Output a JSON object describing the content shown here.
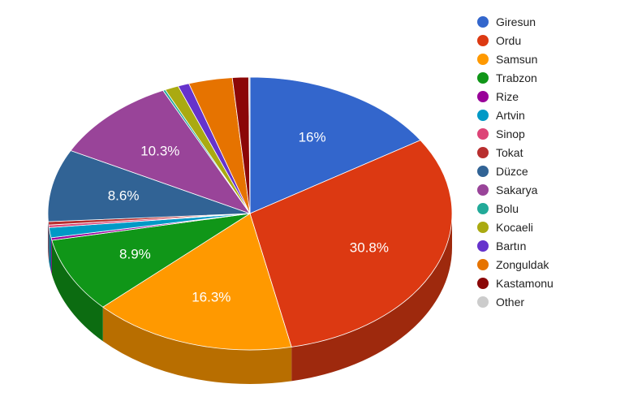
{
  "chart_data": {
    "type": "pie",
    "style": "3d",
    "legend_position": "right",
    "title": "",
    "slices": [
      {
        "name": "Giresun",
        "value": 16.0,
        "label": "16%",
        "color": "#3366cc"
      },
      {
        "name": "Ordu",
        "value": 30.8,
        "label": "30.8%",
        "color": "#dc3912"
      },
      {
        "name": "Samsun",
        "value": 16.3,
        "label": "16.3%",
        "color": "#ff9900"
      },
      {
        "name": "Trabzon",
        "value": 8.9,
        "label": "8.9%",
        "color": "#109618"
      },
      {
        "name": "Rize",
        "value": 0.3,
        "label": "",
        "color": "#990099"
      },
      {
        "name": "Artvin",
        "value": 1.2,
        "label": "",
        "color": "#0099c6"
      },
      {
        "name": "Sinop",
        "value": 0.3,
        "label": "",
        "color": "#dd4477"
      },
      {
        "name": "Tokat",
        "value": 0.4,
        "label": "",
        "color": "#b82e2e"
      },
      {
        "name": "Düzce",
        "value": 8.6,
        "label": "8.6%",
        "color": "#316395"
      },
      {
        "name": "Sakarya",
        "value": 10.3,
        "label": "10.3%",
        "color": "#994499"
      },
      {
        "name": "Bolu",
        "value": 0.2,
        "label": "",
        "color": "#22aa99"
      },
      {
        "name": "Kocaeli",
        "value": 1.1,
        "label": "",
        "color": "#aaaa11"
      },
      {
        "name": "Bartın",
        "value": 0.9,
        "label": "",
        "color": "#6633cc"
      },
      {
        "name": "Zonguldak",
        "value": 3.5,
        "label": "",
        "color": "#e67300"
      },
      {
        "name": "Kastamonu",
        "value": 1.3,
        "label": "",
        "color": "#8b0707"
      },
      {
        "name": "Other",
        "value": 0.1,
        "label": "",
        "color": "#cccccc"
      }
    ]
  }
}
